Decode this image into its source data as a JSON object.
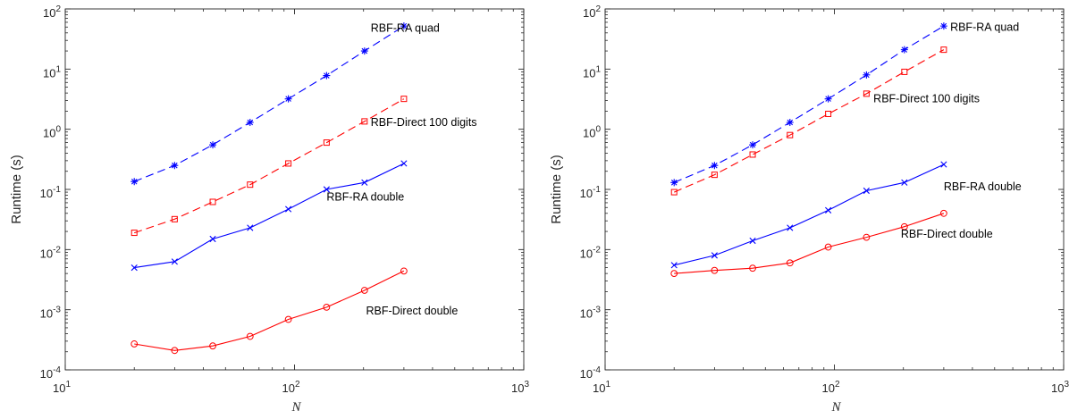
{
  "colors": {
    "blue": "#0000ff",
    "red": "#ff0000",
    "axes": "#262626"
  },
  "chart_data": [
    {
      "type": "line",
      "xscale": "log",
      "yscale": "log",
      "xlim": [
        10,
        1000
      ],
      "ylim": [
        0.0001,
        100
      ],
      "xlabel": "N",
      "ylabel": "Runtime (s)",
      "xtick_labels": [
        {
          "base": "10",
          "exp": "1"
        },
        {
          "base": "10",
          "exp": "2"
        },
        {
          "base": "10",
          "exp": "3"
        }
      ],
      "ytick_labels": [
        {
          "base": "10",
          "exp": "-4"
        },
        {
          "base": "10",
          "exp": "-3"
        },
        {
          "base": "10",
          "exp": "-2"
        },
        {
          "base": "10",
          "exp": "-1"
        },
        {
          "base": "10",
          "exp": "0"
        },
        {
          "base": "10",
          "exp": "1"
        },
        {
          "base": "10",
          "exp": "2"
        }
      ],
      "x": [
        20,
        30,
        44,
        64,
        94,
        138,
        202,
        300
      ],
      "series": [
        {
          "label": "RBF-RA quad",
          "color": "blue",
          "dash": true,
          "marker": "asterisk",
          "values": [
            0.135,
            0.25,
            0.55,
            1.3,
            3.2,
            7.8,
            20,
            52
          ]
        },
        {
          "label": "RBF-Direct 100 digits",
          "color": "red",
          "dash": true,
          "marker": "square",
          "values": [
            0.019,
            0.032,
            0.062,
            0.12,
            0.27,
            0.6,
            1.35,
            3.2
          ]
        },
        {
          "label": "RBF-RA double",
          "color": "blue",
          "dash": false,
          "marker": "x",
          "values": [
            0.005,
            0.0063,
            0.015,
            0.023,
            0.047,
            0.1,
            0.13,
            0.27
          ]
        },
        {
          "label": "RBF-Direct double",
          "color": "red",
          "dash": false,
          "marker": "circle",
          "values": [
            0.00027,
            0.00021,
            0.00025,
            0.00036,
            0.00069,
            0.0011,
            0.0021,
            0.0044
          ]
        }
      ],
      "annotations": [
        {
          "text": "RBF-RA quad",
          "x": 215,
          "y": 48
        },
        {
          "text": "RBF-Direct 100 digits",
          "x": 215,
          "y": 1.3
        },
        {
          "text": "RBF-RA double",
          "x": 138,
          "y": 0.075
        },
        {
          "text": "RBF-Direct double",
          "x": 205,
          "y": 0.00095
        }
      ]
    },
    {
      "type": "line",
      "xscale": "log",
      "yscale": "log",
      "xlim": [
        10,
        1000
      ],
      "ylim": [
        0.0001,
        100
      ],
      "xlabel": "N",
      "ylabel": "Runtime (s)",
      "xtick_labels": [
        {
          "base": "10",
          "exp": "1"
        },
        {
          "base": "10",
          "exp": "2"
        },
        {
          "base": "10",
          "exp": "3"
        }
      ],
      "ytick_labels": [
        {
          "base": "10",
          "exp": "-4"
        },
        {
          "base": "10",
          "exp": "-3"
        },
        {
          "base": "10",
          "exp": "-2"
        },
        {
          "base": "10",
          "exp": "-1"
        },
        {
          "base": "10",
          "exp": "0"
        },
        {
          "base": "10",
          "exp": "1"
        },
        {
          "base": "10",
          "exp": "2"
        }
      ],
      "x": [
        20,
        30,
        44,
        64,
        94,
        138,
        202,
        300
      ],
      "series": [
        {
          "label": "RBF-RA quad",
          "color": "blue",
          "dash": true,
          "marker": "asterisk",
          "values": [
            0.13,
            0.25,
            0.55,
            1.3,
            3.2,
            8,
            21,
            52
          ]
        },
        {
          "label": "RBF-Direct 100 digits",
          "color": "red",
          "dash": true,
          "marker": "square",
          "values": [
            0.09,
            0.175,
            0.38,
            0.8,
            1.8,
            3.9,
            9,
            21
          ]
        },
        {
          "label": "RBF-RA double",
          "color": "blue",
          "dash": false,
          "marker": "x",
          "values": [
            0.0055,
            0.008,
            0.014,
            0.023,
            0.045,
            0.095,
            0.13,
            0.26
          ]
        },
        {
          "label": "RBF-Direct double",
          "color": "red",
          "dash": false,
          "marker": "circle",
          "values": [
            0.004,
            0.0045,
            0.0049,
            0.006,
            0.011,
            0.016,
            0.024,
            0.04
          ]
        }
      ],
      "annotations": [
        {
          "text": "RBF-RA quad",
          "x": 320,
          "y": 50
        },
        {
          "text": "RBF-Direct 100 digits",
          "x": 148,
          "y": 3.2
        },
        {
          "text": "RBF-RA double",
          "x": 300,
          "y": 0.11
        },
        {
          "text": "RBF-Direct double",
          "x": 195,
          "y": 0.018
        }
      ]
    }
  ]
}
